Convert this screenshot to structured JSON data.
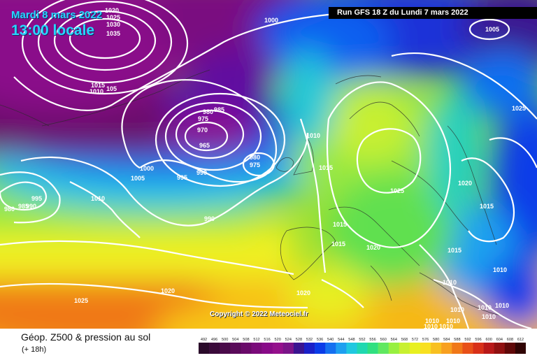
{
  "header": {
    "date": "Mardi 8 mars 2022",
    "time": "13:00 locale",
    "run": "Run GFS 18 Z du Lundi 7 mars 2022"
  },
  "footer": {
    "title": "Géop. Z500 & pression au sol",
    "offset": "(+ 18h)",
    "copyright": "Copyright © 2022 Meteociel.fr"
  },
  "isobar_labels": [
    {
      "text": "1020"
    },
    {
      "text": "1025"
    },
    {
      "text": "1030"
    },
    {
      "text": "1035"
    },
    {
      "text": "1000"
    },
    {
      "text": "1005"
    },
    {
      "text": "1015"
    },
    {
      "text": "1010"
    },
    {
      "text": "105"
    },
    {
      "text": "985"
    },
    {
      "text": "980"
    },
    {
      "text": "975"
    },
    {
      "text": "970"
    },
    {
      "text": "965"
    },
    {
      "text": "980"
    },
    {
      "text": "975"
    },
    {
      "text": "1010"
    },
    {
      "text": "1015"
    },
    {
      "text": "1000"
    },
    {
      "text": "1005"
    },
    {
      "text": "995"
    },
    {
      "text": "990"
    },
    {
      "text": "995"
    },
    {
      "text": "980"
    },
    {
      "text": "985"
    },
    {
      "text": "990"
    },
    {
      "text": "1010"
    },
    {
      "text": "990"
    },
    {
      "text": "1025"
    },
    {
      "text": "1025"
    },
    {
      "text": "1020"
    },
    {
      "text": "1015"
    },
    {
      "text": "1015"
    },
    {
      "text": "1015"
    },
    {
      "text": "1020"
    },
    {
      "text": "1015"
    },
    {
      "text": "1010"
    },
    {
      "text": "1010"
    },
    {
      "text": "1020"
    },
    {
      "text": "1020"
    },
    {
      "text": "1025"
    },
    {
      "text": "1010"
    },
    {
      "text": "1010"
    },
    {
      "text": "1010"
    },
    {
      "text": "1010"
    },
    {
      "text": "1010"
    },
    {
      "text": "1010"
    },
    {
      "text": "1010"
    },
    {
      "text": "1010"
    }
  ],
  "colorscale": {
    "ticks": [
      "492",
      "496",
      "500",
      "504",
      "508",
      "512",
      "516",
      "520",
      "524",
      "528",
      "532",
      "536",
      "540",
      "544",
      "548",
      "552",
      "556",
      "560",
      "564",
      "568",
      "572",
      "576",
      "580",
      "584",
      "588",
      "592",
      "596",
      "600",
      "604",
      "608",
      "612"
    ],
    "colors": [
      "#2a0a2a",
      "#3a0a3a",
      "#4a0a4a",
      "#5a0a5a",
      "#6a0a6a",
      "#7a0a7a",
      "#880a88",
      "#94108c",
      "#7a1488",
      "#3a1490",
      "#1a20c8",
      "#0a3ce8",
      "#1470f0",
      "#1ea0f0",
      "#20c8e0",
      "#20d8b0",
      "#30e080",
      "#60e860",
      "#98f040",
      "#c8f030",
      "#e8f020",
      "#f8e020",
      "#f8c020",
      "#f8a020",
      "#f07818",
      "#e85018",
      "#d83018",
      "#b81818",
      "#901010",
      "#600808",
      "#300404"
    ]
  }
}
